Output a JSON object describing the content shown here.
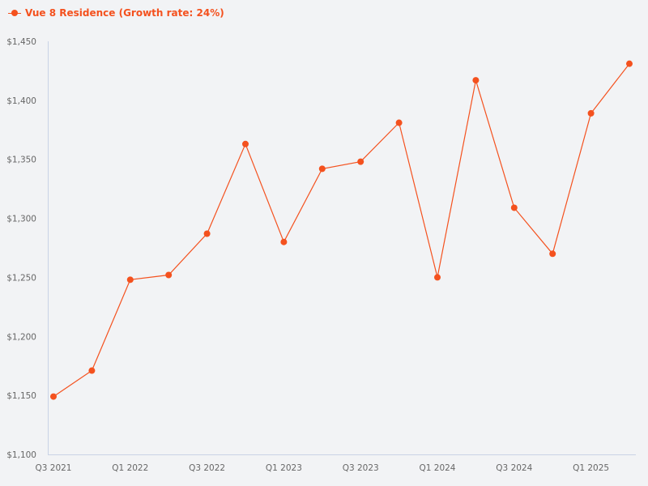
{
  "legend": {
    "label": "Vue 8 Residence (Growth rate: 24%)",
    "color": "#f4511e"
  },
  "colors": {
    "background": "#f2f3f5",
    "axis": "#c9d3e6",
    "series": "#f4511e",
    "tick_text": "#666666"
  },
  "chart_data": {
    "type": "line",
    "title": "",
    "xlabel": "",
    "ylabel": "",
    "ylim": [
      1100,
      1450
    ],
    "yticks": [
      1100,
      1150,
      1200,
      1250,
      1300,
      1350,
      1400,
      1450
    ],
    "ytick_labels": [
      "$1,100",
      "$1,150",
      "$1,200",
      "$1,250",
      "$1,300",
      "$1,350",
      "$1,400",
      "$1,450"
    ],
    "grid": false,
    "legend_position": "top-left",
    "categories": [
      "Q3 2021",
      "Q4 2021",
      "Q1 2022",
      "Q2 2022",
      "Q3 2022",
      "Q4 2022",
      "Q1 2023",
      "Q2 2023",
      "Q3 2023",
      "Q4 2023",
      "Q1 2024",
      "Q2 2024",
      "Q3 2024",
      "Q4 2024",
      "Q1 2025",
      "Q2 2025"
    ],
    "xtick_labels_shown": [
      "Q3 2021",
      "Q1 2022",
      "Q3 2022",
      "Q1 2023",
      "Q3 2023",
      "Q1 2024",
      "Q3 2024",
      "Q1 2025"
    ],
    "series": [
      {
        "name": "Vue 8 Residence (Growth rate: 24%)",
        "values": [
          1149,
          1171,
          1248,
          1252,
          1287,
          1363,
          1280,
          1342,
          1348,
          1381,
          1250,
          1417,
          1309,
          1270,
          1389,
          1431
        ]
      }
    ]
  }
}
